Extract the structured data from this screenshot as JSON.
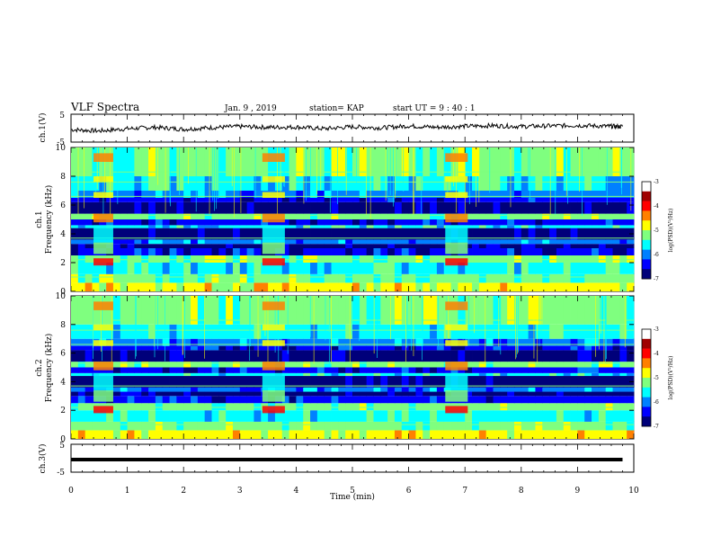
{
  "header": {
    "title": "VLF Spectra",
    "date": "Jan. 9 , 2019",
    "station": "station= KAP",
    "start": "start  UT =  9 : 40 : 1"
  },
  "colors": {
    "spec_scale": [
      "#00007a",
      "#0000ff",
      "#0080ff",
      "#00ffff",
      "#7fff7f",
      "#ffff00",
      "#ff8000",
      "#ff0000",
      "#a00000",
      "#ffffff"
    ],
    "trace": "#000000"
  },
  "chart_data": [
    {
      "type": "line",
      "panel": "ch1-waveform",
      "ylabel": "ch.1(V)",
      "ylim": [
        -5,
        5
      ],
      "yticks": [
        "5",
        "-5"
      ],
      "x": [
        0.0,
        0.5,
        1.0,
        1.5,
        2.0,
        2.5,
        3.0,
        3.5,
        4.0,
        4.5,
        5.0,
        5.5,
        6.0,
        6.5,
        7.0,
        7.5,
        8.0,
        8.5,
        9.0,
        9.5,
        9.8
      ],
      "values": [
        -0.5,
        -1.0,
        -0.2,
        0.3,
        -0.4,
        0.2,
        0.6,
        0.3,
        0.4,
        -0.2,
        0.5,
        0.1,
        0.8,
        0.3,
        0.7,
        0.9,
        0.6,
        0.8,
        1.0,
        0.7,
        0.6
      ]
    },
    {
      "type": "heatmap",
      "panel": "ch1-spectrogram",
      "ylabel": "ch.1\nFrequency (kHz)",
      "ylim": [
        0,
        10
      ],
      "yticks": [
        "0",
        "2",
        "4",
        "6",
        "8",
        "10"
      ],
      "colorbar": {
        "label": "log(PSD)(V²/Hz)",
        "range": [
          -7,
          -3
        ],
        "ticks": [
          "-3",
          "-4",
          "-5",
          "-6",
          "-7"
        ]
      },
      "bursts_min": [
        [
          0.4,
          0.75
        ],
        [
          3.4,
          3.8
        ],
        [
          6.65,
          7.05
        ]
      ]
    },
    {
      "type": "heatmap",
      "panel": "ch2-spectrogram",
      "ylabel": "ch.2\nFrequency (kHz)",
      "ylim": [
        0,
        10
      ],
      "yticks": [
        "0",
        "2",
        "4",
        "6",
        "8",
        "10"
      ],
      "colorbar": {
        "label": "log(PSD)(V²/Hz)",
        "range": [
          -7,
          -3
        ],
        "ticks": [
          "-3",
          "-4",
          "-5",
          "-6",
          "-7"
        ]
      },
      "bursts_min": [
        [
          0.4,
          0.75
        ],
        [
          3.4,
          3.8
        ],
        [
          6.65,
          7.05
        ]
      ]
    },
    {
      "type": "line",
      "panel": "ch3-waveform",
      "ylabel": "ch.3(V)",
      "ylim": [
        -5,
        5
      ],
      "yticks": [
        "5",
        "-5"
      ],
      "x": [
        0.0,
        9.8
      ],
      "values": [
        -0.5,
        -0.5
      ]
    }
  ],
  "xaxis": {
    "label": "Time  (min)",
    "range": [
      0,
      10
    ],
    "ticks": [
      "0",
      "1",
      "2",
      "3",
      "4",
      "5",
      "6",
      "7",
      "8",
      "9",
      "10"
    ]
  }
}
